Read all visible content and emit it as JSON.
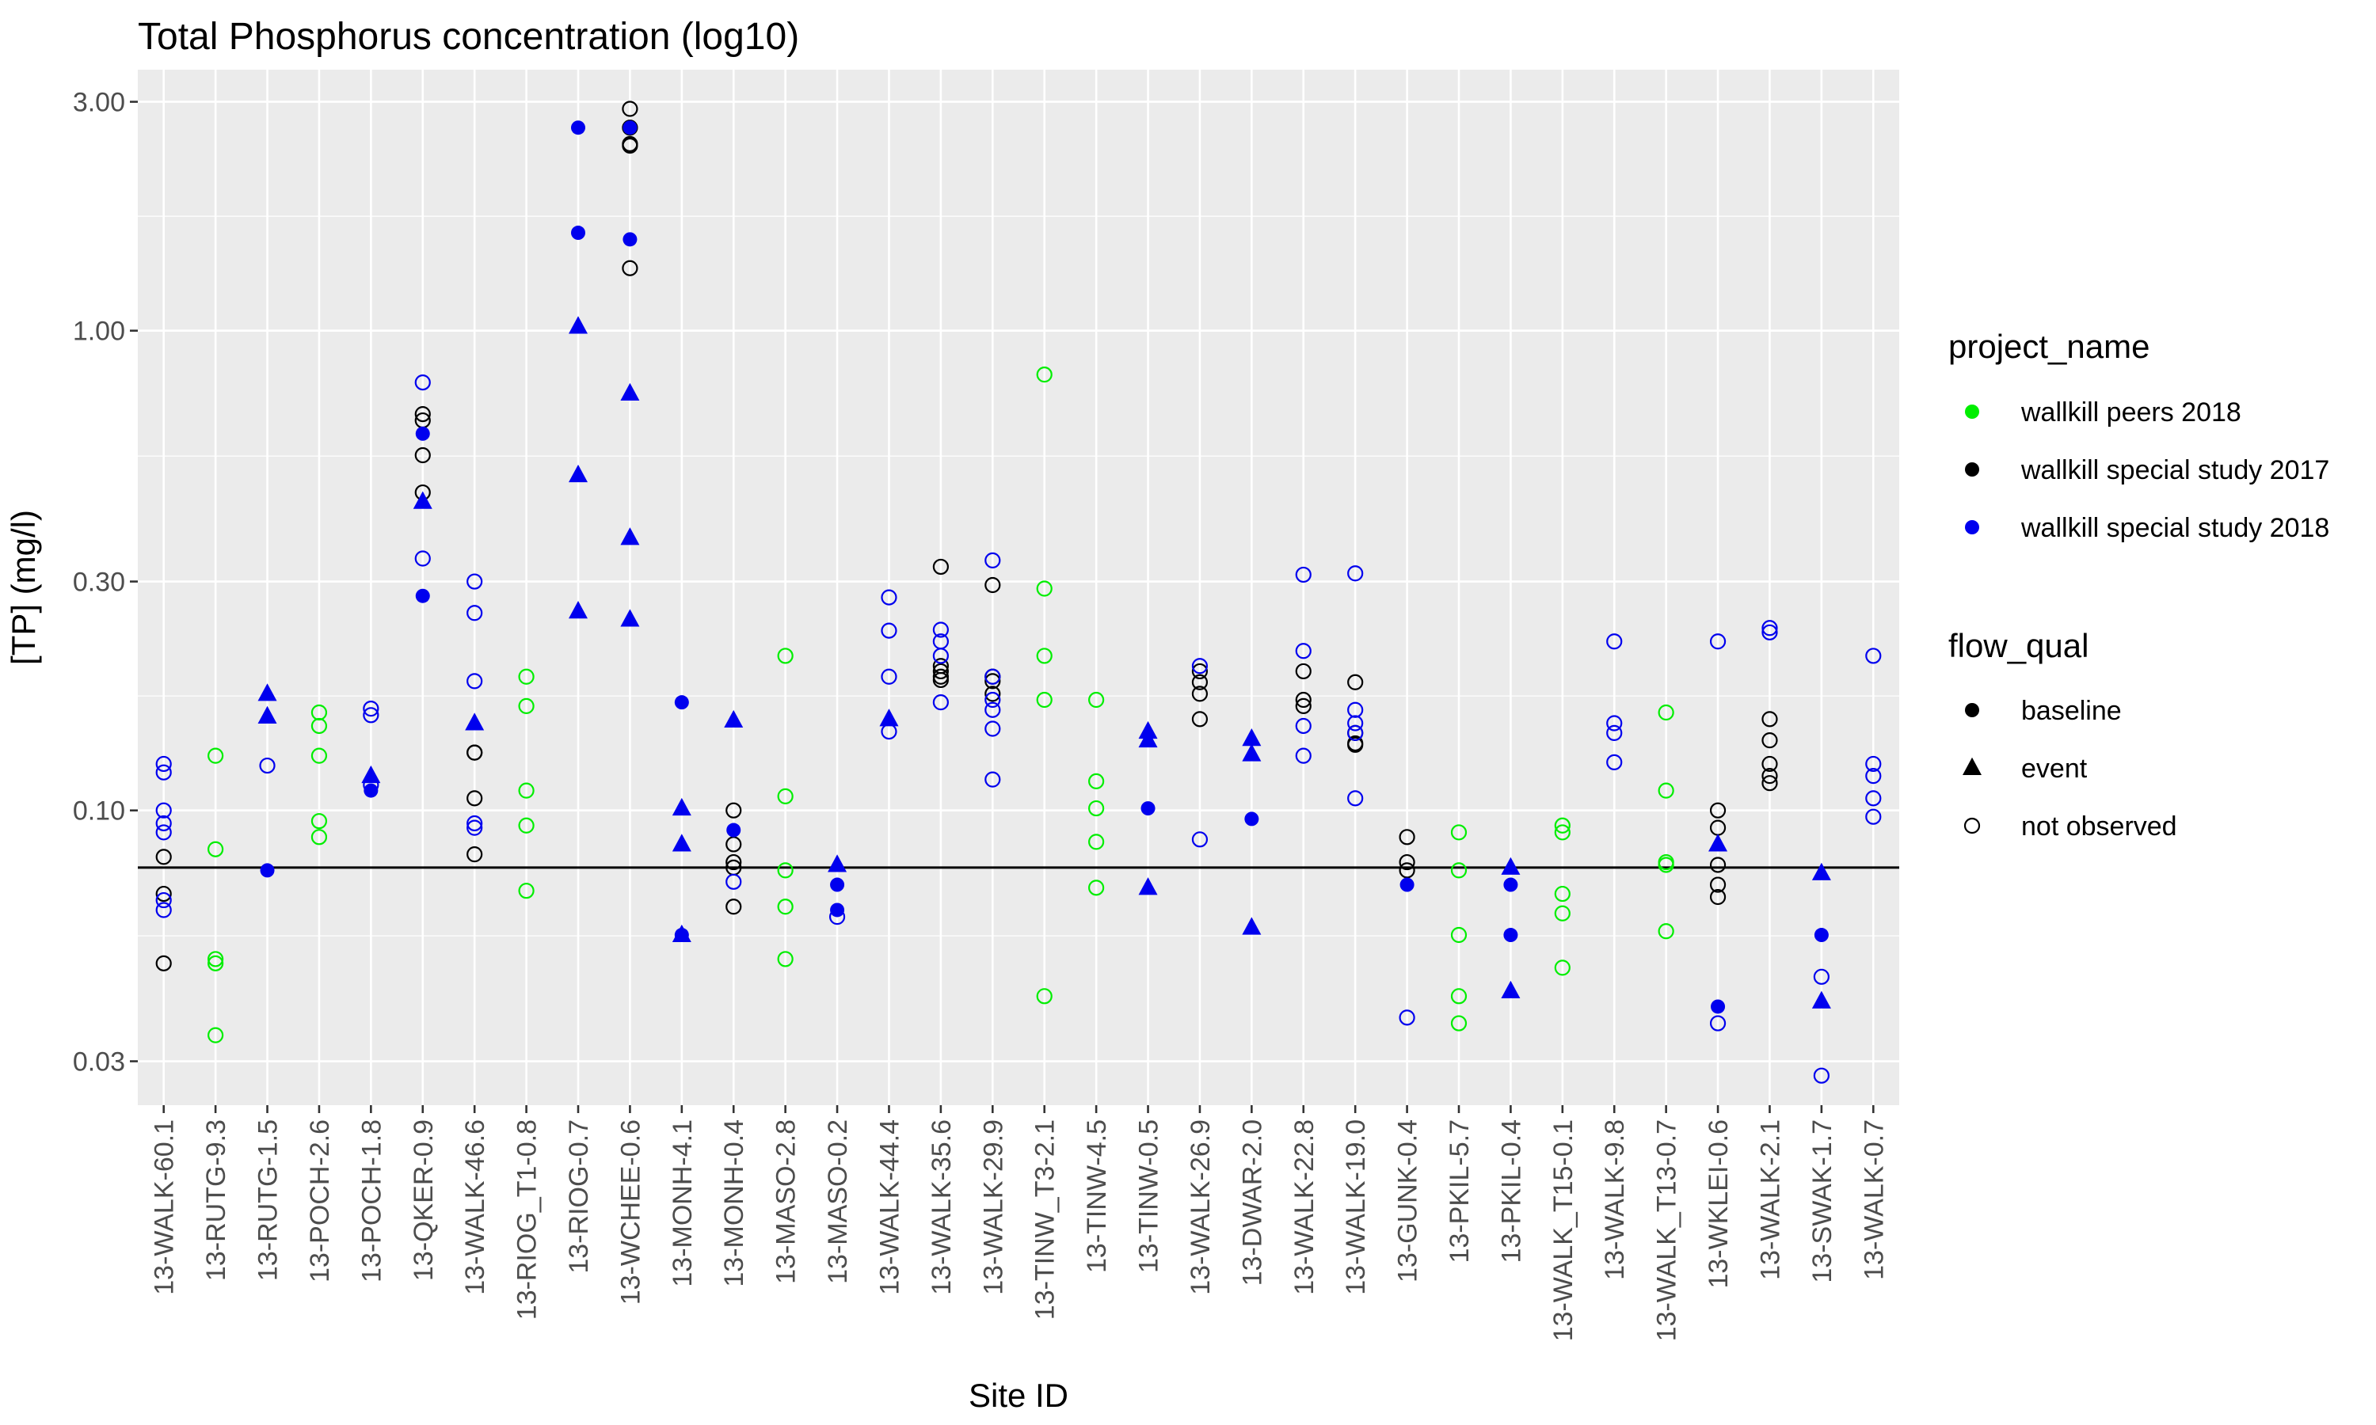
{
  "chart_data": {
    "type": "scatter",
    "title": "Total Phosphorus concentration (log10)",
    "xlabel": "Site ID",
    "ylabel": "[TP] (mg/l)",
    "y_scale": "log10",
    "ylim": [
      0.0243,
      3.5
    ],
    "y_ticks": [
      {
        "value": 0.03,
        "label": "0.03"
      },
      {
        "value": 0.1,
        "label": "0.10"
      },
      {
        "value": 0.3,
        "label": "0.30"
      },
      {
        "value": 1.0,
        "label": "1.00"
      },
      {
        "value": 3.0,
        "label": "3.00"
      }
    ],
    "reference_line": 0.076,
    "grid": true,
    "legend_position": "right",
    "categories": [
      "13-WALK-60.1",
      "13-RUTG-9.3",
      "13-RUTG-1.5",
      "13-POCH-2.6",
      "13-POCH-1.8",
      "13-QKER-0.9",
      "13-WALK-46.6",
      "13-RIOG_T1-0.8",
      "13-RIOG-0.7",
      "13-WCHEE-0.6",
      "13-MONH-4.1",
      "13-MONH-0.4",
      "13-MASO-2.8",
      "13-MASO-0.2",
      "13-WALK-44.4",
      "13-WALK-35.6",
      "13-WALK-29.9",
      "13-TINW_T3-2.1",
      "13-TINW-4.5",
      "13-TINW-0.5",
      "13-WALK-26.9",
      "13-DWAR-2.0",
      "13-WALK-22.8",
      "13-WALK-19.0",
      "13-GUNK-0.4",
      "13-PKIL-5.7",
      "13-PKIL-0.4",
      "13-WALK_T15-0.1",
      "13-WALK-9.8",
      "13-WALK_T13-0.7",
      "13-WKLEI-0.6",
      "13-WALK-2.1",
      "13-SWAK-1.7",
      "13-WALK-0.7"
    ],
    "legends": {
      "color": {
        "title": "project_name",
        "entries": [
          {
            "key": "peers2018",
            "label": "wallkill peers 2018",
            "color": "#00ee00"
          },
          {
            "key": "ss2017",
            "label": "wallkill special study 2017",
            "color": "#000000"
          },
          {
            "key": "ss2018",
            "label": "wallkill special study 2018",
            "color": "#0000ee"
          }
        ]
      },
      "shape": {
        "title": "flow_qual",
        "entries": [
          {
            "key": "baseline",
            "label": "baseline",
            "shape": "filled-circle"
          },
          {
            "key": "event",
            "label": "event",
            "shape": "filled-triangle"
          },
          {
            "key": "not_observed",
            "label": "not observed",
            "shape": "open-circle"
          }
        ]
      }
    },
    "series": [
      {
        "project": "peers2018",
        "flow": "not_observed",
        "points": [
          [
            "13-RUTG-9.3",
            0.13
          ],
          [
            "13-RUTG-9.3",
            0.083
          ],
          [
            "13-RUTG-9.3",
            0.049
          ],
          [
            "13-RUTG-9.3",
            0.048
          ],
          [
            "13-RUTG-9.3",
            0.034
          ],
          [
            "13-POCH-2.6",
            0.16
          ],
          [
            "13-POCH-2.6",
            0.15
          ],
          [
            "13-POCH-2.6",
            0.13
          ],
          [
            "13-POCH-2.6",
            0.095
          ],
          [
            "13-POCH-2.6",
            0.088
          ],
          [
            "13-RIOG_T1-0.8",
            0.19
          ],
          [
            "13-RIOG_T1-0.8",
            0.165
          ],
          [
            "13-RIOG_T1-0.8",
            0.11
          ],
          [
            "13-RIOG_T1-0.8",
            0.093
          ],
          [
            "13-RIOG_T1-0.8",
            0.068
          ],
          [
            "13-MASO-2.8",
            0.21
          ],
          [
            "13-MASO-2.8",
            0.107
          ],
          [
            "13-MASO-2.8",
            0.075
          ],
          [
            "13-MASO-2.8",
            0.063
          ],
          [
            "13-MASO-2.8",
            0.049
          ],
          [
            "13-TINW_T3-2.1",
            0.81
          ],
          [
            "13-TINW_T3-2.1",
            0.29
          ],
          [
            "13-TINW_T3-2.1",
            0.21
          ],
          [
            "13-TINW_T3-2.1",
            0.17
          ],
          [
            "13-TINW_T3-2.1",
            0.041
          ],
          [
            "13-TINW-4.5",
            0.17
          ],
          [
            "13-TINW-4.5",
            0.115
          ],
          [
            "13-TINW-4.5",
            0.101
          ],
          [
            "13-TINW-4.5",
            0.086
          ],
          [
            "13-TINW-4.5",
            0.069
          ],
          [
            "13-PKIL-5.7",
            0.09
          ],
          [
            "13-PKIL-5.7",
            0.075
          ],
          [
            "13-PKIL-5.7",
            0.055
          ],
          [
            "13-PKIL-5.7",
            0.041
          ],
          [
            "13-PKIL-5.7",
            0.036
          ],
          [
            "13-WALK_T15-0.1",
            0.093
          ],
          [
            "13-WALK_T15-0.1",
            0.09
          ],
          [
            "13-WALK_T15-0.1",
            0.067
          ],
          [
            "13-WALK_T15-0.1",
            0.061
          ],
          [
            "13-WALK_T15-0.1",
            0.047
          ],
          [
            "13-WALK_T13-0.7",
            0.16
          ],
          [
            "13-WALK_T13-0.7",
            0.11
          ],
          [
            "13-WALK_T13-0.7",
            0.078
          ],
          [
            "13-WALK_T13-0.7",
            0.077
          ],
          [
            "13-WALK_T13-0.7",
            0.056
          ]
        ]
      },
      {
        "project": "ss2017",
        "flow": "not_observed",
        "points": [
          [
            "13-WALK-60.1",
            0.08
          ],
          [
            "13-WALK-60.1",
            0.067
          ],
          [
            "13-WALK-60.1",
            0.048
          ],
          [
            "13-QKER-0.9",
            0.67
          ],
          [
            "13-QKER-0.9",
            0.65
          ],
          [
            "13-QKER-0.9",
            0.55
          ],
          [
            "13-QKER-0.9",
            0.46
          ],
          [
            "13-WALK-46.6",
            0.132
          ],
          [
            "13-WALK-46.6",
            0.132
          ],
          [
            "13-WALK-46.6",
            0.106
          ],
          [
            "13-WALK-46.6",
            0.081
          ],
          [
            "13-WCHEE-0.6",
            2.9
          ],
          [
            "13-WCHEE-0.6",
            2.65
          ],
          [
            "13-WCHEE-0.6",
            2.45
          ],
          [
            "13-WCHEE-0.6",
            2.43
          ],
          [
            "13-WCHEE-0.6",
            1.35
          ],
          [
            "13-MONH-0.4",
            0.1
          ],
          [
            "13-MONH-0.4",
            0.085
          ],
          [
            "13-MONH-0.4",
            0.078
          ],
          [
            "13-MONH-0.4",
            0.076
          ],
          [
            "13-MONH-0.4",
            0.063
          ],
          [
            "13-WALK-35.6",
            0.322
          ],
          [
            "13-WALK-35.6",
            0.2
          ],
          [
            "13-WALK-35.6",
            0.195
          ],
          [
            "13-WALK-35.6",
            0.19
          ],
          [
            "13-WALK-35.6",
            0.187
          ],
          [
            "13-WALK-29.9",
            0.295
          ],
          [
            "13-WALK-29.9",
            0.19
          ],
          [
            "13-WALK-29.9",
            0.186
          ],
          [
            "13-WALK-29.9",
            0.175
          ],
          [
            "13-WALK-26.9",
            0.195
          ],
          [
            "13-WALK-26.9",
            0.185
          ],
          [
            "13-WALK-26.9",
            0.175
          ],
          [
            "13-WALK-26.9",
            0.155
          ],
          [
            "13-WALK-22.8",
            0.195
          ],
          [
            "13-WALK-22.8",
            0.17
          ],
          [
            "13-WALK-22.8",
            0.165
          ],
          [
            "13-WALK-19.0",
            0.185
          ],
          [
            "13-WALK-19.0",
            0.145
          ],
          [
            "13-WALK-19.0",
            0.138
          ],
          [
            "13-WALK-19.0",
            0.137
          ],
          [
            "13-GUNK-0.4",
            0.088
          ],
          [
            "13-GUNK-0.4",
            0.078
          ],
          [
            "13-GUNK-0.4",
            0.075
          ],
          [
            "13-WKLEI-0.6",
            0.1
          ],
          [
            "13-WKLEI-0.6",
            0.092
          ],
          [
            "13-WKLEI-0.6",
            0.077
          ],
          [
            "13-WKLEI-0.6",
            0.07
          ],
          [
            "13-WKLEI-0.6",
            0.066
          ],
          [
            "13-WALK-2.1",
            0.155
          ],
          [
            "13-WALK-2.1",
            0.14
          ],
          [
            "13-WALK-2.1",
            0.125
          ],
          [
            "13-WALK-2.1",
            0.118
          ],
          [
            "13-WALK-2.1",
            0.114
          ]
        ]
      },
      {
        "project": "ss2018",
        "flow": "not_observed",
        "points": [
          [
            "13-WALK-60.1",
            0.125
          ],
          [
            "13-WALK-60.1",
            0.12
          ],
          [
            "13-WALK-60.1",
            0.1
          ],
          [
            "13-WALK-60.1",
            0.094
          ],
          [
            "13-WALK-60.1",
            0.09
          ],
          [
            "13-WALK-60.1",
            0.065
          ],
          [
            "13-WALK-60.1",
            0.062
          ],
          [
            "13-RUTG-1.5",
            0.124
          ],
          [
            "13-POCH-1.8",
            0.163
          ],
          [
            "13-POCH-1.8",
            0.158
          ],
          [
            "13-POCH-1.8",
            0.113
          ],
          [
            "13-QKER-0.9",
            0.78
          ],
          [
            "13-QKER-0.9",
            0.335
          ],
          [
            "13-WALK-46.6",
            0.3
          ],
          [
            "13-WALK-46.6",
            0.258
          ],
          [
            "13-WALK-46.6",
            0.186
          ],
          [
            "13-WALK-46.6",
            0.094
          ],
          [
            "13-WALK-46.6",
            0.092
          ],
          [
            "13-MONH-0.4",
            0.071
          ],
          [
            "13-MASO-0.2",
            0.06
          ],
          [
            "13-WALK-44.4",
            0.278
          ],
          [
            "13-WALK-44.4",
            0.237
          ],
          [
            "13-WALK-44.4",
            0.19
          ],
          [
            "13-WALK-44.4",
            0.146
          ],
          [
            "13-WALK-35.6",
            0.238
          ],
          [
            "13-WALK-35.6",
            0.225
          ],
          [
            "13-WALK-35.6",
            0.21
          ],
          [
            "13-WALK-35.6",
            0.168
          ],
          [
            "13-WALK-29.9",
            0.332
          ],
          [
            "13-WALK-29.9",
            0.19
          ],
          [
            "13-WALK-29.9",
            0.17
          ],
          [
            "13-WALK-29.9",
            0.162
          ],
          [
            "13-WALK-29.9",
            0.148
          ],
          [
            "13-WALK-29.9",
            0.116
          ],
          [
            "13-WALK-26.9",
            0.2
          ],
          [
            "13-WALK-26.9",
            0.087
          ],
          [
            "13-WALK-22.8",
            0.31
          ],
          [
            "13-WALK-22.8",
            0.215
          ],
          [
            "13-WALK-22.8",
            0.15
          ],
          [
            "13-WALK-22.8",
            0.13
          ],
          [
            "13-WALK-19.0",
            0.312
          ],
          [
            "13-WALK-19.0",
            0.162
          ],
          [
            "13-WALK-19.0",
            0.152
          ],
          [
            "13-WALK-19.0",
            0.145
          ],
          [
            "13-WALK-19.0",
            0.106
          ],
          [
            "13-GUNK-0.4",
            0.037
          ],
          [
            "13-WALK-9.8",
            0.225
          ],
          [
            "13-WALK-9.8",
            0.152
          ],
          [
            "13-WALK-9.8",
            0.145
          ],
          [
            "13-WALK-9.8",
            0.126
          ],
          [
            "13-WKLEI-0.6",
            0.225
          ],
          [
            "13-WKLEI-0.6",
            0.036
          ],
          [
            "13-WALK-2.1",
            0.24
          ],
          [
            "13-WALK-2.1",
            0.235
          ],
          [
            "13-SWAK-1.7",
            0.045
          ],
          [
            "13-SWAK-1.7",
            0.028
          ],
          [
            "13-WALK-0.7",
            0.21
          ],
          [
            "13-WALK-0.7",
            0.125
          ],
          [
            "13-WALK-0.7",
            0.118
          ],
          [
            "13-WALK-0.7",
            0.106
          ],
          [
            "13-WALK-0.7",
            0.097
          ]
        ]
      },
      {
        "project": "ss2018",
        "flow": "baseline",
        "points": [
          [
            "13-RUTG-1.5",
            0.075
          ],
          [
            "13-POCH-1.8",
            0.11
          ],
          [
            "13-QKER-0.9",
            0.61
          ],
          [
            "13-QKER-0.9",
            0.28
          ],
          [
            "13-RIOG-0.7",
            2.65
          ],
          [
            "13-RIOG-0.7",
            1.6
          ],
          [
            "13-WCHEE-0.6",
            2.65
          ],
          [
            "13-WCHEE-0.6",
            1.55
          ],
          [
            "13-MONH-4.1",
            0.168
          ],
          [
            "13-MONH-4.1",
            0.055
          ],
          [
            "13-MONH-0.4",
            0.091
          ],
          [
            "13-MASO-0.2",
            0.07
          ],
          [
            "13-MASO-0.2",
            0.062
          ],
          [
            "13-TINW-0.5",
            0.101
          ],
          [
            "13-DWAR-2.0",
            0.096
          ],
          [
            "13-GUNK-0.4",
            0.07
          ],
          [
            "13-PKIL-0.4",
            0.07
          ],
          [
            "13-PKIL-0.4",
            0.055
          ],
          [
            "13-WKLEI-0.6",
            0.039
          ],
          [
            "13-SWAK-1.7",
            0.055
          ]
        ]
      },
      {
        "project": "ss2018",
        "flow": "event",
        "points": [
          [
            "13-RUTG-1.5",
            0.175
          ],
          [
            "13-RUTG-1.5",
            0.157
          ],
          [
            "13-POCH-1.8",
            0.118
          ],
          [
            "13-QKER-0.9",
            0.44
          ],
          [
            "13-WALK-46.6",
            0.152
          ],
          [
            "13-RIOG-0.7",
            1.02
          ],
          [
            "13-RIOG-0.7",
            0.5
          ],
          [
            "13-RIOG-0.7",
            0.26
          ],
          [
            "13-WCHEE-0.6",
            0.74
          ],
          [
            "13-WCHEE-0.6",
            0.37
          ],
          [
            "13-WCHEE-0.6",
            0.25
          ],
          [
            "13-MONH-4.1",
            0.101
          ],
          [
            "13-MONH-4.1",
            0.085
          ],
          [
            "13-MONH-4.1",
            0.055
          ],
          [
            "13-MONH-0.4",
            0.154
          ],
          [
            "13-MASO-0.2",
            0.077
          ],
          [
            "13-WALK-44.4",
            0.155
          ],
          [
            "13-TINW-0.5",
            0.146
          ],
          [
            "13-TINW-0.5",
            0.14
          ],
          [
            "13-TINW-0.5",
            0.069
          ],
          [
            "13-DWAR-2.0",
            0.141
          ],
          [
            "13-DWAR-2.0",
            0.131
          ],
          [
            "13-DWAR-2.0",
            0.057
          ],
          [
            "13-PKIL-0.4",
            0.076
          ],
          [
            "13-PKIL-0.4",
            0.042
          ],
          [
            "13-WKLEI-0.6",
            0.085
          ],
          [
            "13-SWAK-1.7",
            0.074
          ],
          [
            "13-SWAK-1.7",
            0.04
          ]
        ]
      }
    ]
  }
}
